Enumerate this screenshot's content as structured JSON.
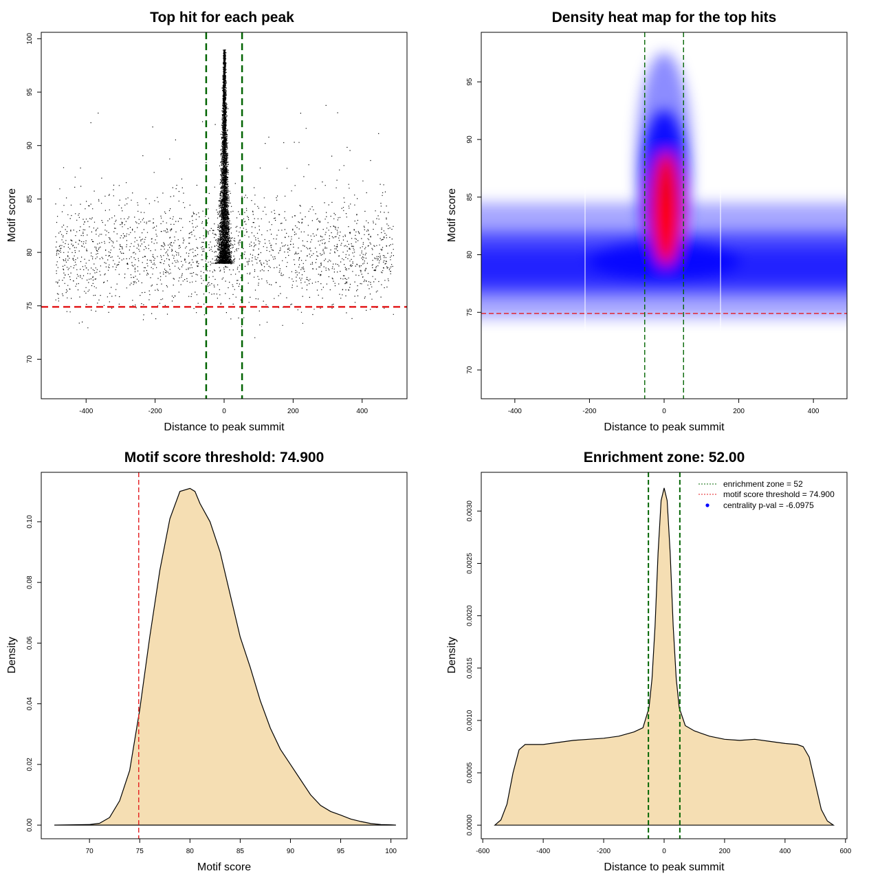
{
  "chart_data": [
    {
      "type": "scatter",
      "title": "Top hit for each peak",
      "xlabel": "Distance to peak summit",
      "ylabel": "Motif score",
      "xlim": [
        -530,
        530
      ],
      "ylim": [
        66.3,
        100.6
      ],
      "xticks": [
        -400,
        -200,
        0,
        200,
        400
      ],
      "yticks": [
        70,
        75,
        80,
        85,
        90,
        95,
        100
      ],
      "x_range": [
        -490,
        490
      ],
      "background_center": 80,
      "central_peak_max": 99,
      "hlines": [
        {
          "y": 74.9,
          "color": "#e31a1c",
          "style": "dashed"
        }
      ],
      "vlines": [
        {
          "x": -52,
          "color": "#006400",
          "style": "dashed"
        },
        {
          "x": 52,
          "color": "#006400",
          "style": "dashed"
        }
      ]
    },
    {
      "type": "heatmap",
      "title": "Density heat map for the top hits",
      "xlabel": "Distance to peak summit",
      "ylabel": "Motif score",
      "xlim": [
        -490,
        490
      ],
      "ylim": [
        67.5,
        99.3
      ],
      "xticks": [
        -400,
        -200,
        0,
        200
      ],
      "xtick_labels": [
        "-400",
        "-200",
        "0",
        "200"
      ],
      "extra_xticks": [
        400
      ],
      "yticks": [
        70,
        75,
        80,
        85,
        90,
        95
      ],
      "colors": [
        "#ffffff",
        "#0000ff",
        "#ff0000"
      ],
      "hlines": [
        {
          "y": 74.9,
          "color": "#e31a1c",
          "style": "dashed"
        }
      ],
      "vlines": [
        {
          "x": -52,
          "color": "#006400",
          "style": "dashed"
        },
        {
          "x": 52,
          "color": "#006400",
          "style": "dashed"
        }
      ]
    },
    {
      "type": "area",
      "title": "Motif score threshold: 74.900",
      "xlabel": "Motif score",
      "ylabel": "Density",
      "xlim": [
        65.2,
        101.6
      ],
      "ylim": [
        -0.0045,
        0.1163
      ],
      "xticks": [
        70,
        75,
        80,
        85,
        90,
        95,
        100
      ],
      "yticks": [
        0.0,
        0.02,
        0.04,
        0.06,
        0.08,
        0.1
      ],
      "ytick_labels": [
        "0.00",
        "0.02",
        "0.04",
        "0.06",
        "0.08",
        "0.10"
      ],
      "fill": "#f5deb3",
      "x": [
        66.5,
        70,
        71,
        72,
        73,
        74,
        75,
        76,
        77,
        78,
        79,
        80,
        80.5,
        81,
        82,
        83,
        84,
        85,
        86,
        87,
        88,
        89,
        90,
        91,
        92,
        93,
        94,
        95,
        96,
        97,
        98,
        99,
        100,
        100.5
      ],
      "values": [
        0.0,
        0.0002,
        0.0006,
        0.0025,
        0.008,
        0.018,
        0.038,
        0.062,
        0.084,
        0.101,
        0.11,
        0.111,
        0.11,
        0.106,
        0.1,
        0.09,
        0.076,
        0.062,
        0.052,
        0.041,
        0.032,
        0.025,
        0.02,
        0.015,
        0.01,
        0.0065,
        0.0045,
        0.0033,
        0.002,
        0.0012,
        0.0005,
        0.0002,
        0.0001,
        0.0
      ],
      "vlines": [
        {
          "x": 74.9,
          "color": "#e31a1c",
          "style": "dashed"
        }
      ]
    },
    {
      "type": "area",
      "title": "Enrichment zone: 52.00",
      "xlabel": "Distance to peak summit",
      "ylabel": "Density",
      "xlim": [
        -605,
        605
      ],
      "ylim": [
        -0.00013,
        0.00337
      ],
      "xticks": [
        -600,
        -400,
        -200,
        0,
        200,
        400,
        600
      ],
      "yticks": [
        0.0,
        0.0005,
        0.001,
        0.0015,
        0.002,
        0.0025,
        0.003
      ],
      "ytick_labels": [
        "0.0000",
        "0.0005",
        "0.0010",
        "0.0015",
        "0.0020",
        "0.0025",
        "0.0030"
      ],
      "fill": "#f5deb3",
      "x": [
        -560,
        -540,
        -520,
        -500,
        -480,
        -460,
        -440,
        -400,
        -300,
        -250,
        -200,
        -150,
        -100,
        -70,
        -50,
        -40,
        -30,
        -20,
        -10,
        0,
        10,
        20,
        30,
        40,
        50,
        70,
        100,
        150,
        200,
        250,
        300,
        350,
        400,
        440,
        460,
        480,
        500,
        520,
        540,
        560
      ],
      "values": [
        0.0,
        5e-05,
        0.0002,
        0.0005,
        0.00072,
        0.00077,
        0.00077,
        0.00077,
        0.00081,
        0.00082,
        0.00083,
        0.00085,
        0.00089,
        0.00093,
        0.00112,
        0.0014,
        0.0019,
        0.0026,
        0.0031,
        0.00322,
        0.0031,
        0.0026,
        0.0019,
        0.0014,
        0.00112,
        0.00095,
        0.0009,
        0.00085,
        0.00082,
        0.00081,
        0.00082,
        0.0008,
        0.00078,
        0.00077,
        0.00075,
        0.00065,
        0.0004,
        0.00015,
        4e-05,
        0.0
      ],
      "vlines": [
        {
          "x": -52,
          "color": "#006400",
          "style": "dashed"
        },
        {
          "x": 52,
          "color": "#006400",
          "style": "dashed"
        }
      ],
      "legend": [
        {
          "label": "enrichment zone = 52",
          "color": "#006400",
          "symbol": "dotted-line"
        },
        {
          "label": "motif score threshold = 74.900",
          "color": "#e31a1c",
          "symbol": "dotted-line"
        },
        {
          "label": "centrality p-val = -6.0975",
          "color": "#0000ff",
          "symbol": "dot"
        }
      ],
      "legend_position": "top-right"
    }
  ]
}
